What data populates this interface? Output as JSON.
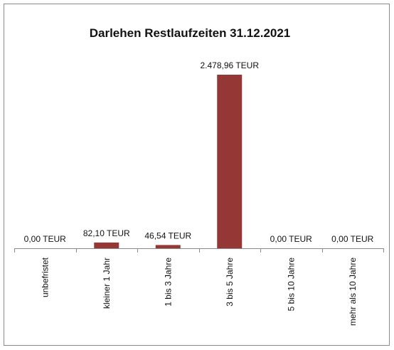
{
  "chart_data": {
    "type": "bar",
    "title": "Darlehen Restlaufzeiten 31.12.2021",
    "categories": [
      "unbefristet",
      "kleiner 1 Jahr",
      "1 bis 3 Jahre",
      "3 bis 5 Jahre",
      "5 bis 10 Jahre",
      "mehr als 10 Jahre"
    ],
    "values": [
      0.0,
      82.1,
      46.54,
      2478.96,
      0.0,
      0.0
    ],
    "data_labels": [
      "0,00 TEUR",
      "82,10 TEUR",
      "46,54 TEUR",
      "2.478,96 TEUR",
      "0,00 TEUR",
      "0,00 TEUR"
    ],
    "ylim": [
      0,
      2478.96
    ],
    "bar_color": "#953735",
    "grid": false,
    "legend": "none",
    "xlabel": "",
    "ylabel": ""
  }
}
